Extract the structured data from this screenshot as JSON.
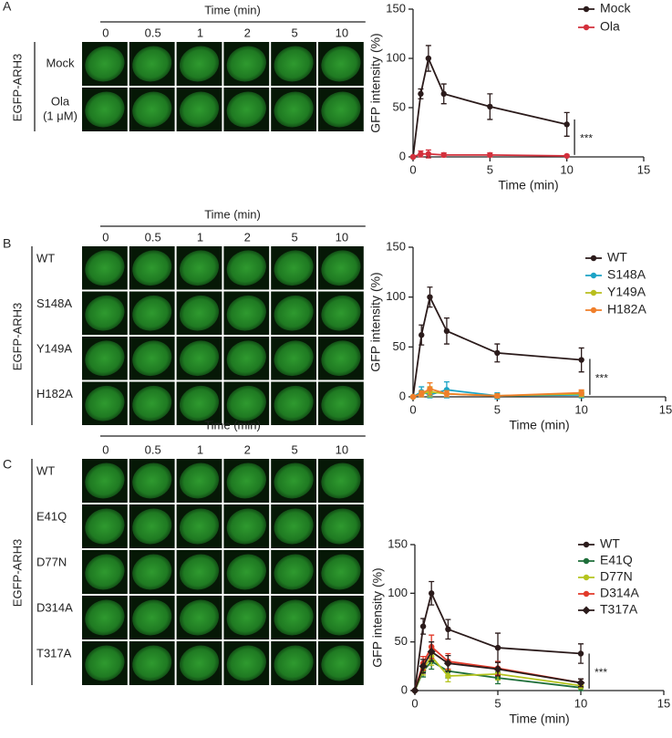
{
  "panels": [
    {
      "label": "A",
      "header": "Time (min)",
      "times": [
        "0",
        "0.5",
        "1",
        "2",
        "5",
        "10"
      ],
      "side_label": "EGFP-ARH3",
      "rows": [
        [
          "Mock"
        ],
        [
          "Ola",
          "(1 μM)"
        ]
      ]
    },
    {
      "label": "B",
      "header": "Time (min)",
      "times": [
        "0",
        "0.5",
        "1",
        "2",
        "5",
        "10"
      ],
      "side_label": "EGFP-ARH3",
      "rows": [
        [
          "WT"
        ],
        [
          "S148A"
        ],
        [
          "Y149A"
        ],
        [
          "H182A"
        ]
      ]
    },
    {
      "label": "C",
      "header": "Time (min)",
      "times": [
        "0",
        "0.5",
        "1",
        "2",
        "5",
        "10"
      ],
      "side_label": "EGFP-ARH3",
      "rows": [
        [
          "WT"
        ],
        [
          "E41Q"
        ],
        [
          "D77N"
        ],
        [
          "D314A"
        ],
        [
          "T317A"
        ]
      ]
    }
  ],
  "chart_data": [
    {
      "type": "line",
      "xlabel": "Time (min)",
      "ylabel": "GFP intensity (%)",
      "annotation": "***",
      "x": [
        0,
        0.5,
        1,
        2,
        5,
        10
      ],
      "xlim": [
        0,
        15
      ],
      "xticks": [
        0,
        5,
        10,
        15
      ],
      "ylim": [
        0,
        150
      ],
      "yticks": [
        0,
        50,
        100,
        150
      ],
      "series": [
        {
          "name": "Mock",
          "color": "#2b1b1b",
          "marker": "circle",
          "values": [
            0,
            64,
            100,
            64,
            51,
            33
          ],
          "errors": [
            0,
            5,
            13,
            10,
            13,
            12
          ]
        },
        {
          "name": "Ola",
          "color": "#d3303c",
          "marker": "circle",
          "values": [
            0,
            3,
            3,
            2,
            2,
            1
          ],
          "errors": [
            0,
            3,
            4,
            2,
            2,
            1
          ]
        }
      ]
    },
    {
      "type": "line",
      "xlabel": "Time (min)",
      "ylabel": "GFP intensity (%)",
      "annotation": "***",
      "x": [
        0,
        0.5,
        1,
        2,
        5,
        10
      ],
      "xlim": [
        0,
        15
      ],
      "xticks": [
        0,
        5,
        10,
        15
      ],
      "ylim": [
        0,
        150
      ],
      "yticks": [
        0,
        50,
        100,
        150
      ],
      "series": [
        {
          "name": "WT",
          "color": "#2b1b1b",
          "marker": "circle",
          "values": [
            0,
            62,
            100,
            66,
            44,
            37
          ],
          "errors": [
            0,
            10,
            10,
            13,
            9,
            12
          ]
        },
        {
          "name": "S148A",
          "color": "#1ba3c6",
          "marker": "circle",
          "values": [
            0,
            5,
            2,
            7,
            1,
            2
          ],
          "errors": [
            0,
            5,
            3,
            8,
            3,
            3
          ]
        },
        {
          "name": "Y149A",
          "color": "#b8be1e",
          "marker": "circle",
          "values": [
            0,
            3,
            5,
            3,
            1,
            3
          ],
          "errors": [
            0,
            3,
            5,
            3,
            2,
            3
          ]
        },
        {
          "name": "H182A",
          "color": "#f07f2a",
          "marker": "circle",
          "values": [
            0,
            3,
            8,
            3,
            1,
            4
          ],
          "errors": [
            0,
            3,
            6,
            3,
            2,
            3
          ]
        }
      ]
    },
    {
      "type": "line",
      "xlabel": "Time (min)",
      "ylabel": "GFP intensity (%)",
      "annotation": "***",
      "x": [
        0,
        0.5,
        1,
        2,
        5,
        10
      ],
      "xlim": [
        0,
        15
      ],
      "xticks": [
        0,
        5,
        10,
        15
      ],
      "ylim": [
        0,
        150
      ],
      "yticks": [
        0,
        50,
        100,
        150
      ],
      "series": [
        {
          "name": "WT",
          "color": "#2b1b1b",
          "marker": "circle",
          "values": [
            0,
            66,
            100,
            63,
            44,
            38
          ],
          "errors": [
            0,
            8,
            12,
            10,
            15,
            10
          ]
        },
        {
          "name": "E41Q",
          "color": "#1e6e3a",
          "marker": "circle",
          "values": [
            0,
            20,
            30,
            20,
            13,
            3
          ],
          "errors": [
            0,
            6,
            8,
            7,
            6,
            3
          ]
        },
        {
          "name": "D77N",
          "color": "#b5c41e",
          "marker": "circle",
          "values": [
            0,
            22,
            35,
            15,
            17,
            5
          ],
          "errors": [
            0,
            6,
            9,
            6,
            6,
            3
          ]
        },
        {
          "name": "D314A",
          "color": "#e23a2a",
          "marker": "circle",
          "values": [
            0,
            28,
            45,
            30,
            23,
            8
          ],
          "errors": [
            0,
            7,
            12,
            8,
            7,
            4
          ]
        },
        {
          "name": "T317A",
          "color": "#2b1b1b",
          "marker": "diamond",
          "values": [
            0,
            25,
            40,
            28,
            22,
            8
          ],
          "errors": [
            0,
            7,
            10,
            8,
            7,
            4
          ]
        }
      ]
    }
  ]
}
